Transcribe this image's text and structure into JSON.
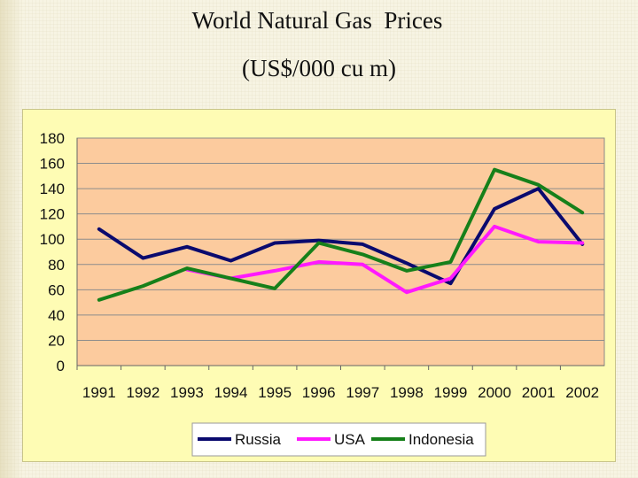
{
  "title": {
    "line1": "World Natural Gas  Prices",
    "line2": "(US$/000 cu m)"
  },
  "chart_data": {
    "type": "line",
    "title": "World Natural Gas  Prices (US$/000 cu m)",
    "xlabel": "",
    "ylabel": "",
    "categories": [
      "1991",
      "1992",
      "1993",
      "1994",
      "1995",
      "1996",
      "1997",
      "1998",
      "1999",
      "2000",
      "2001",
      "2002"
    ],
    "ylim": [
      0,
      180
    ],
    "yticks": [
      0,
      20,
      40,
      60,
      80,
      100,
      120,
      140,
      160,
      180
    ],
    "grid": true,
    "legend_position": "bottom",
    "series": [
      {
        "name": "Russia",
        "color": "#0a0a6e",
        "values": [
          108,
          85,
          94,
          83,
          97,
          99,
          96,
          81,
          65,
          124,
          140,
          96
        ]
      },
      {
        "name": "USA",
        "color": "#ff19ff",
        "values": [
          null,
          null,
          76,
          69,
          75,
          82,
          80,
          58,
          69,
          110,
          98,
          97
        ]
      },
      {
        "name": "Indonesia",
        "color": "#16801a",
        "values": [
          52,
          63,
          77,
          69,
          61,
          97,
          88,
          75,
          82,
          155,
          143,
          121
        ]
      }
    ]
  }
}
